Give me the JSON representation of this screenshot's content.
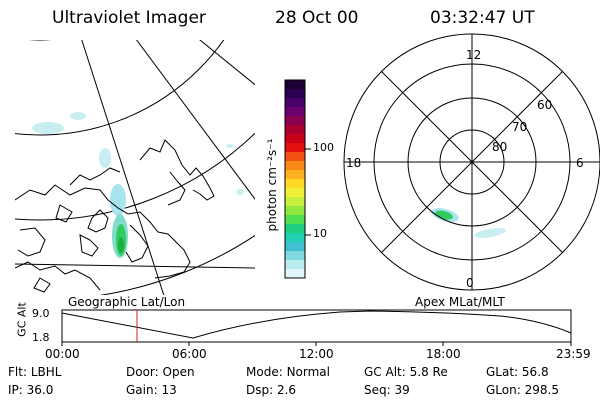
{
  "header": {
    "instrument": "Ultraviolet Imager",
    "date": "28 Oct 00",
    "time": "03:32:47 UT"
  },
  "left_panel": {
    "caption": "Geographic Lat/Lon"
  },
  "colorbar": {
    "unit_label": "photon cm⁻²s⁻¹",
    "ticks": [
      "100",
      "10"
    ],
    "colors": [
      "#1a0033",
      "#2b0050",
      "#4a006a",
      "#6a0070",
      "#8a0050",
      "#a80030",
      "#c80018",
      "#e21010",
      "#f05010",
      "#f88818",
      "#ffb020",
      "#ffd828",
      "#f0f038",
      "#c8f040",
      "#90e840",
      "#50e050",
      "#20d080",
      "#20d0b0",
      "#40c0d0",
      "#80d8e0",
      "#b8ecef",
      "#e0f6f8"
    ]
  },
  "right_panel": {
    "caption": "Apex MLat/MLT",
    "mlt_labels": {
      "top": "12",
      "left": "18",
      "right": "6",
      "bottom": "0"
    },
    "lat_labels": [
      "60",
      "70",
      "80"
    ]
  },
  "timeline": {
    "y_label": "GC Alt",
    "y_ticks": [
      "9.0",
      "1.8"
    ],
    "x_ticks": [
      "00:00",
      "06:00",
      "12:00",
      "18:00",
      "23:59"
    ],
    "marker_time": "03:32"
  },
  "footer": {
    "row1": [
      {
        "label": "Flt:",
        "value": "LBHL"
      },
      {
        "label": "Door:",
        "value": "Open"
      },
      {
        "label": "Mode:",
        "value": "Normal"
      },
      {
        "label": "GC Alt:",
        "value": "5.8 Re"
      },
      {
        "label": "GLat:",
        "value": "56.8"
      }
    ],
    "row2": [
      {
        "label": "IP:",
        "value": "36.0"
      },
      {
        "label": "Gain:",
        "value": "13"
      },
      {
        "label": "Dsp:",
        "value": "2.6"
      },
      {
        "label": "Seq:",
        "value": "39"
      },
      {
        "label": "GLon:",
        "value": "298.5"
      }
    ]
  },
  "colors": {
    "marker": "#cc2222",
    "aurora_core": "#20c040",
    "aurora_edge": "#a8e4ee"
  }
}
